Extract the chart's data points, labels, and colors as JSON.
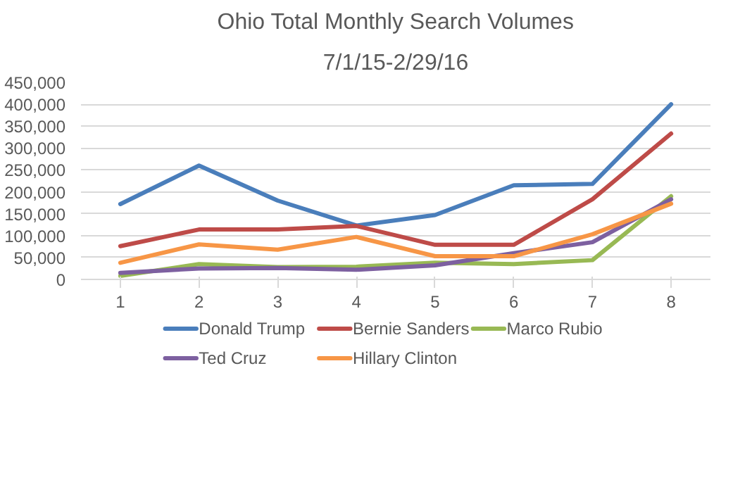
{
  "chart_data": {
    "type": "line",
    "title": "Ohio Total Monthly Search Volumes",
    "subtitle": "7/1/15-2/29/16",
    "categories": [
      "1",
      "2",
      "3",
      "4",
      "5",
      "6",
      "7",
      "8"
    ],
    "series": [
      {
        "name": "Donald Trump",
        "color": "#4a7ebb",
        "values": [
          172000,
          260000,
          180000,
          123000,
          147000,
          215000,
          218000,
          400000
        ]
      },
      {
        "name": "Bernie Sanders",
        "color": "#be4b48",
        "values": [
          76000,
          114000,
          114000,
          122000,
          79000,
          79000,
          183000,
          333000
        ]
      },
      {
        "name": "Marco Rubio",
        "color": "#98b954",
        "values": [
          8000,
          35000,
          28000,
          29000,
          38000,
          35000,
          44000,
          190000
        ]
      },
      {
        "name": "Ted Cruz",
        "color": "#7d60a0",
        "values": [
          15000,
          25000,
          26000,
          22000,
          32000,
          60000,
          85000,
          183000
        ]
      },
      {
        "name": "Hillary Clinton",
        "color": "#f79646",
        "values": [
          38000,
          80000,
          68000,
          97000,
          53000,
          53000,
          103000,
          173000
        ]
      }
    ],
    "ylim": [
      0,
      450000
    ],
    "yticks": [
      {
        "value": 0,
        "label": "0"
      },
      {
        "value": 50000,
        "label": "50,000"
      },
      {
        "value": 100000,
        "label": "100,000"
      },
      {
        "value": 150000,
        "label": "150,000"
      },
      {
        "value": 200000,
        "label": "200,000"
      },
      {
        "value": 250000,
        "label": "250,000"
      },
      {
        "value": 300000,
        "label": "300,000"
      },
      {
        "value": 350000,
        "label": "350,000"
      },
      {
        "value": 400000,
        "label": "400,000"
      },
      {
        "value": 450000,
        "label": "450,000"
      }
    ],
    "grid": "y",
    "legend": "bottom",
    "marker": "none",
    "line_style": "solid"
  }
}
